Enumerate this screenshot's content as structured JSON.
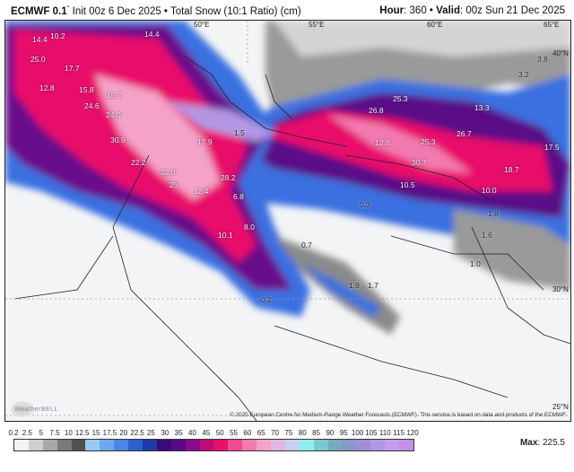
{
  "header": {
    "model": "ECMWF 0.1",
    "degree": "°",
    "init": "Init 00z 6 Dec 2025",
    "product": "Total Snow (10:1 Ratio) (cm)",
    "hour_label": "Hour",
    "hour": "360",
    "valid_label": "Valid",
    "valid": "00z Sun 21 Dec 2025"
  },
  "map": {
    "longitudes": [
      "50°E",
      "55°E",
      "60°E",
      "65°E"
    ],
    "latitudes": [
      "40°N",
      "30°N",
      "25°N"
    ],
    "values": [
      "14.4",
      "10.2",
      "14.4",
      "25.0",
      "17.7",
      "12.8",
      "15.8",
      "15.7",
      "24.6",
      "24.0",
      "30.9",
      "17.9",
      "32.0",
      "25",
      "22.2",
      "28.2",
      "12.4",
      "6.8",
      "8.0",
      "10.1",
      "0.7",
      "0.2",
      "1.9",
      "1.7",
      "0.3",
      "1.5",
      "25.3",
      "26.8",
      "13.3",
      "12.8",
      "25.3",
      "26.7",
      "17.5",
      "30.7",
      "18.7",
      "10.5",
      "10.0",
      "1.8",
      "1.6",
      "1.0",
      "3.8",
      "3.2"
    ],
    "copyright": "© 2025 European Centre for Medium-Range Weather Forecasts (ECMWF). This service is based on data and products of the ECMWF.",
    "logo": "WeatherBELL"
  },
  "legend": {
    "ticks": [
      "0.2",
      "2.5",
      "5",
      "7.5",
      "10",
      "12.5",
      "15",
      "17.5",
      "20",
      "22.5",
      "25",
      "30",
      "35",
      "40",
      "45",
      "50",
      "55",
      "60",
      "65",
      "70",
      "75",
      "80",
      "85",
      "90",
      "95",
      "100",
      "105",
      "110",
      "115",
      "120"
    ],
    "colors": [
      "#f4f4f4",
      "#d0d0d0",
      "#a8a8a8",
      "#7a7a7a",
      "#505050",
      "#9cc8f4",
      "#6fa8ee",
      "#4b86e6",
      "#2c5fd0",
      "#1c3aa8",
      "#3c0a78",
      "#5a0a86",
      "#8a0a8c",
      "#c00a7a",
      "#e8106a",
      "#f04a90",
      "#f27ab0",
      "#f4a2c8",
      "#e0b8e4",
      "#c8d0f0",
      "#8ef0ee",
      "#7ac8d0",
      "#78a8c0",
      "#8898c8",
      "#a090d8",
      "#b298e4",
      "#c49cee",
      "#c490ec"
    ],
    "max_label": "Max",
    "max_value": "225.5"
  }
}
